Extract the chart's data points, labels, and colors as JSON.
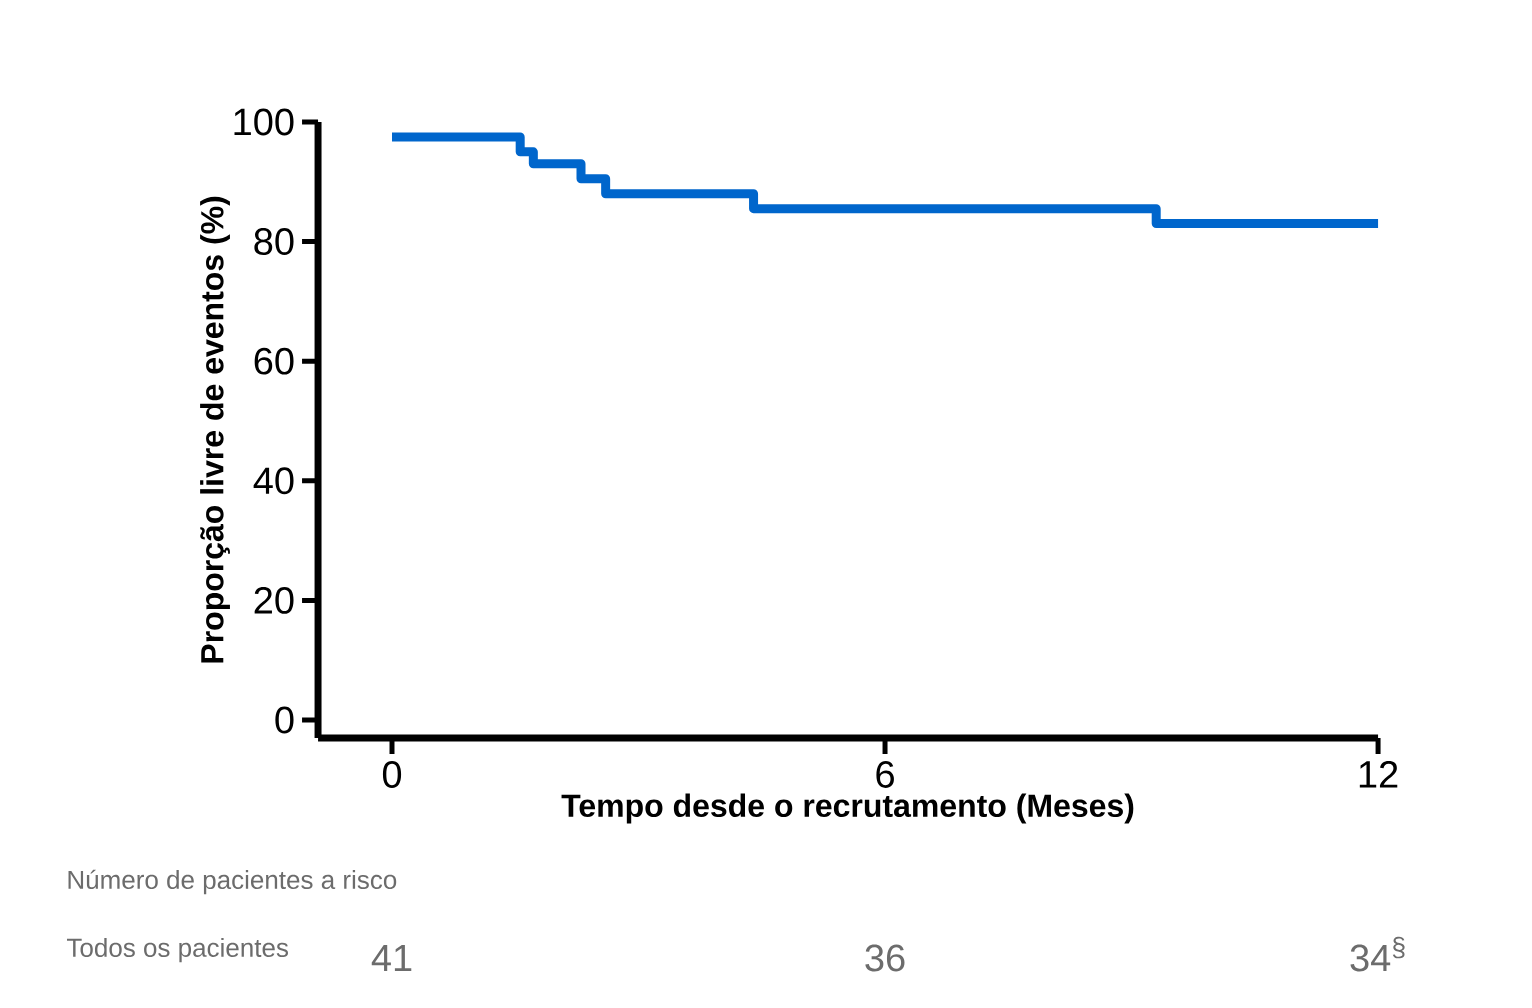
{
  "chart_data": {
    "type": "step",
    "xlabel": "Tempo desde o recrutamento (Meses)",
    "ylabel": "Proporção livre de eventos (%)",
    "series": [
      {
        "color": "#0066cc",
        "x": [
          0,
          1.56,
          1.72,
          2.3,
          2.6,
          4.4,
          9.3,
          12
        ],
        "values": [
          97.5,
          95,
          93,
          90.5,
          88,
          85.5,
          83,
          83
        ]
      }
    ],
    "xlim": [
      -0.9,
      12
    ],
    "xticks": [
      0,
      6,
      12
    ],
    "ylim": [
      -3,
      100
    ],
    "yticks": [
      0,
      20,
      40,
      60,
      80,
      100
    ],
    "grid": false,
    "annotations": [
      "Número de pacientes a risco",
      "Todos os pacientes",
      "41",
      "36",
      "34$^{§}$"
    ]
  }
}
